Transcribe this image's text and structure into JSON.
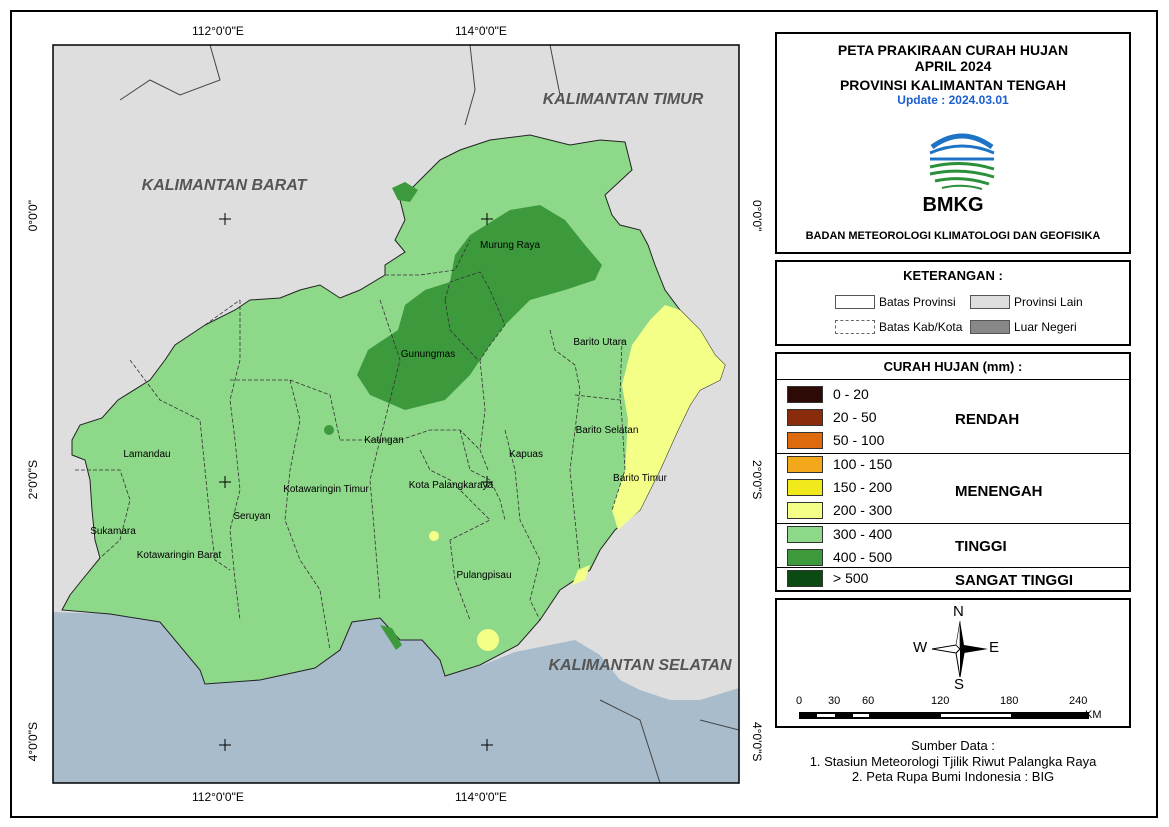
{
  "map": {
    "coords": {
      "top": [
        "112°0'0\"E",
        "114°0'0\"E"
      ],
      "bottom": [
        "112°0'0\"E",
        "114°0'0\"E"
      ],
      "left": [
        "0°0'0\"",
        "2°0'0\"S",
        "4°0'0\"S"
      ],
      "right": [
        "0°0'0\"",
        "2°0'0\"S",
        "4°0'0\"S"
      ]
    },
    "regions": {
      "kalbar": "KALIMANTAN BARAT",
      "kaltim": "KALIMANTAN TIMUR",
      "kalsel": "KALIMANTAN SELATAN"
    },
    "kabupaten": {
      "murung_raya": "Murung Raya",
      "gunungmas": "Gunungmas",
      "barito_utara": "Barito Utara",
      "barito_selatan": "Barito Selatan",
      "barito_timur": "Barito Timur",
      "lamandau": "Lamandau",
      "katingan": "Katingan",
      "kapuas": "Kapuas",
      "kotim": "Kotawaringin Timur",
      "seruyan": "Seruyan",
      "palangkaraya": "Kota Palangkaraya",
      "sukamara": "Sukamara",
      "kobar": "Kotawaringin Barat",
      "pulangpisau": "Pulangpisau"
    }
  },
  "title": {
    "line1": "PETA PRAKIRAAN CURAH HUJAN",
    "line2": "APRIL 2024",
    "line3": "PROVINSI KALIMANTAN TENGAH",
    "update": "Update : 2024.03.01",
    "logo_text": "BMKG",
    "agency": "BADAN METEOROLOGI KLIMATOLOGI DAN GEOFISIKA"
  },
  "keterangan": {
    "heading": "KETERANGAN :",
    "batas_provinsi": "Batas Provinsi",
    "provinsi_lain": "Provinsi Lain",
    "batas_kab": "Batas Kab/Kota",
    "luar_negeri": "Luar Negeri"
  },
  "curah": {
    "heading": "CURAH HUJAN (mm) :",
    "classes": [
      {
        "label": "0 - 20",
        "color": "#2e0a06"
      },
      {
        "label": "20 - 50",
        "color": "#8a2b0c"
      },
      {
        "label": "50 - 100",
        "color": "#de6a0e"
      },
      {
        "label": "100 - 150",
        "color": "#f2a81a"
      },
      {
        "label": "150  - 200",
        "color": "#f0ea1c"
      },
      {
        "label": "200 - 300",
        "color": "#f4ff88"
      },
      {
        "label": "300 - 400",
        "color": "#8ed88a"
      },
      {
        "label": "400 - 500",
        "color": "#3c9a3c"
      },
      {
        "label": "> 500",
        "color": "#0b4a12"
      }
    ],
    "categories": {
      "rendah": "RENDAH",
      "menengah": "MENENGAH",
      "tinggi": "TINGGI",
      "sangat_tinggi": "SANGAT TINGGI"
    }
  },
  "compass": {
    "n": "N",
    "s": "S",
    "e": "E",
    "w": "W"
  },
  "scale": {
    "ticks": [
      "0",
      "30",
      "60",
      "120",
      "180",
      "240"
    ],
    "unit": "KM"
  },
  "sumber": {
    "heading": "Sumber Data :",
    "line1": "1. Stasiun Meteorologi Tjilik Riwut Palangka Raya",
    "line2": "2. Peta Rupa Bumi Indonesia : BIG"
  }
}
